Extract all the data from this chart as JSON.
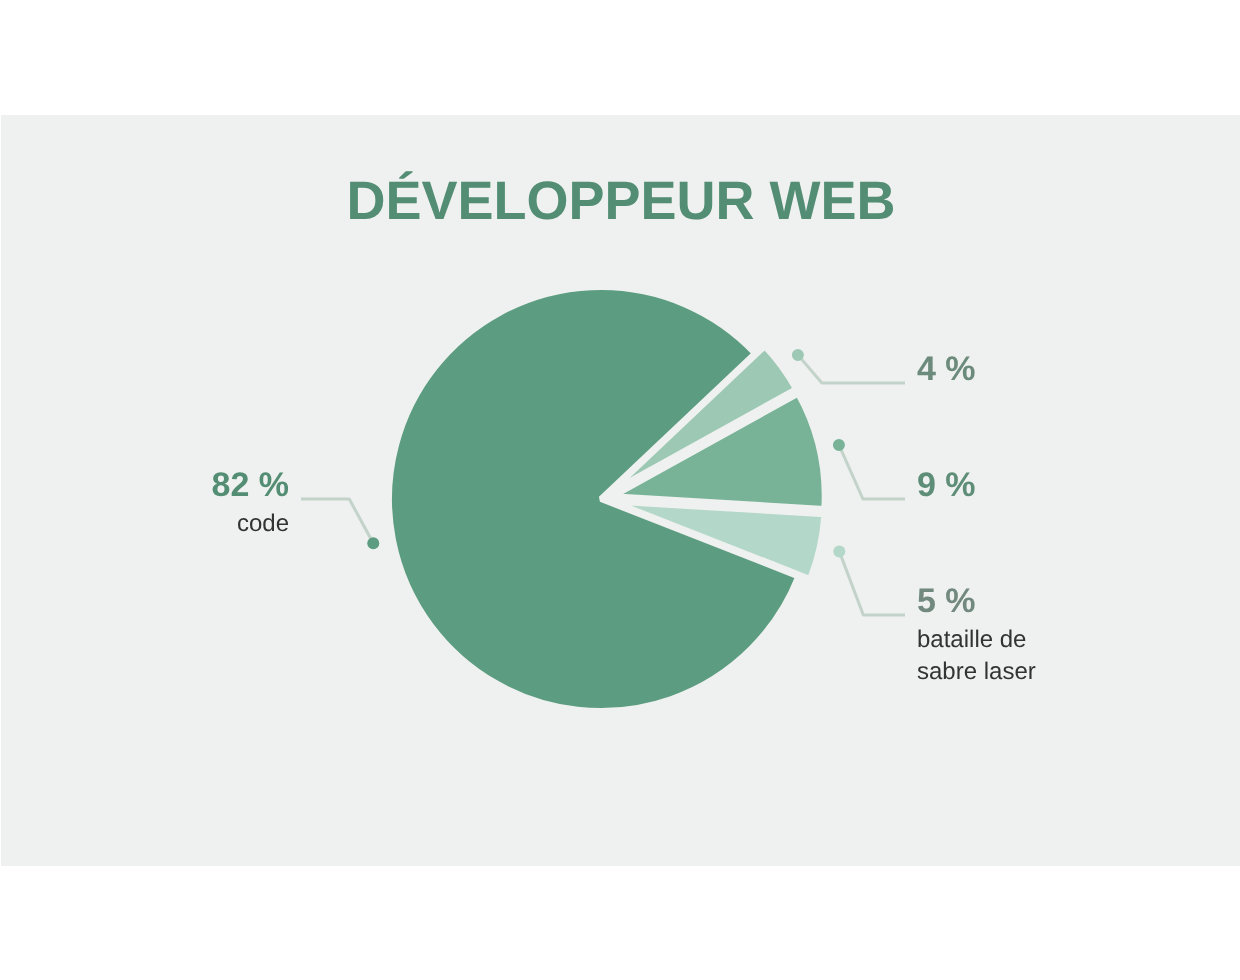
{
  "chart_data": {
    "type": "pie",
    "title": "DÉVELOPPEUR WEB",
    "categories": [
      "code",
      null,
      null,
      "bataille de sabre laser"
    ],
    "values": [
      82,
      4,
      9,
      5
    ],
    "colors": [
      "#5c9c80",
      "#9cc8b4",
      "#78b398",
      "#b3d7c8"
    ],
    "value_labels": [
      "82 %",
      "4 %",
      "9 %",
      "5 %"
    ]
  }
}
